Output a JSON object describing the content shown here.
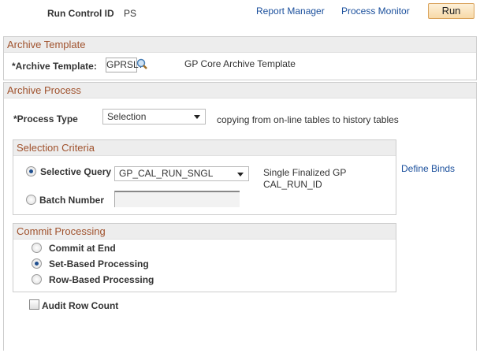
{
  "header": {
    "run_control_label": "Run Control ID",
    "run_control_value": "PS",
    "report_manager": "Report Manager",
    "process_monitor": "Process Monitor",
    "run": "Run"
  },
  "archive_template": {
    "title": "Archive Template",
    "label": "*Archive Template:",
    "value": "GPRSLT",
    "description": "GP Core Archive Template"
  },
  "archive_process": {
    "title": "Archive Process",
    "process_type_label": "*Process Type",
    "process_type_value": "Selection",
    "process_type_desc": "copying from on-line tables to history tables",
    "selection_criteria": {
      "title": "Selection Criteria",
      "selective_query_label": "Selective Query",
      "selective_query_value": "GP_CAL_RUN_SNGL",
      "query_desc_1": "Single Finalized GP",
      "query_desc_2": "CAL_RUN_ID",
      "define_binds": "Define Binds",
      "batch_number_label": "Batch Number",
      "batch_number_value": "",
      "selected": "Selective Query"
    },
    "commit_processing": {
      "title": "Commit Processing",
      "options": [
        "Commit at End",
        "Set-Based Processing",
        "Row-Based Processing"
      ],
      "selected": "Set-Based Processing"
    },
    "audit_row_count": {
      "label": "Audit Row Count",
      "checked": false
    }
  }
}
